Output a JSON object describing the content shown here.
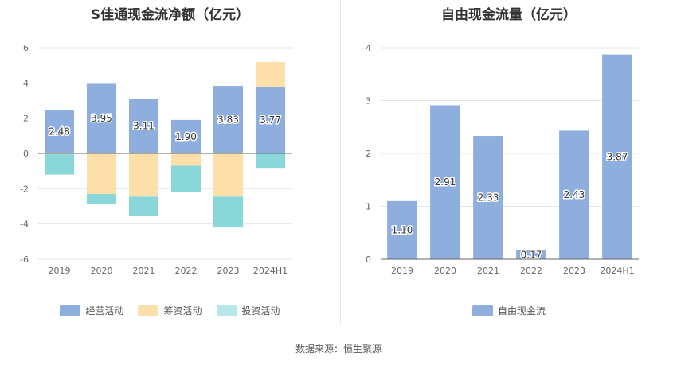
{
  "source_label": "数据来源：恒生聚源",
  "colors": {
    "operating": "#8eaedd",
    "financing": "#fddfa9",
    "investing": "#8ad7da",
    "fcf": "#8eaedd"
  },
  "chart_data": [
    {
      "type": "bar",
      "stacked": true,
      "title": "S佳通现金流净额（亿元）",
      "categories": [
        "2019",
        "2020",
        "2021",
        "2022",
        "2023",
        "2024H1"
      ],
      "ylim": [
        -6,
        6
      ],
      "yticks": [
        6,
        4,
        2,
        0,
        -2,
        -4,
        -6
      ],
      "grid": true,
      "legend_position": "bottom",
      "series": [
        {
          "name": "经营活动",
          "values": [
            2.48,
            3.95,
            3.11,
            1.9,
            3.83,
            3.77
          ],
          "labels": [
            "2.48",
            "3.95",
            "3.11",
            "1.90",
            "3.83",
            "3.77"
          ]
        },
        {
          "name": "筹资活动",
          "values": [
            -0.05,
            -2.3,
            -2.45,
            -0.7,
            -2.45,
            1.42
          ]
        },
        {
          "name": "投资活动",
          "values": [
            -1.15,
            -0.55,
            -1.1,
            -1.5,
            -1.75,
            -0.82
          ]
        }
      ]
    },
    {
      "type": "bar",
      "title": "自由现金流量（亿元）",
      "categories": [
        "2019",
        "2020",
        "2021",
        "2022",
        "2023",
        "2024H1"
      ],
      "ylim": [
        0,
        4
      ],
      "yticks": [
        4,
        3,
        2,
        1,
        0
      ],
      "grid": true,
      "legend_position": "bottom",
      "series": [
        {
          "name": "自由现金流",
          "values": [
            1.1,
            2.91,
            2.33,
            0.17,
            2.43,
            3.87
          ],
          "labels": [
            "1.10",
            "2.91",
            "2.33",
            "0.17",
            "2.43",
            "3.87"
          ]
        }
      ]
    }
  ]
}
